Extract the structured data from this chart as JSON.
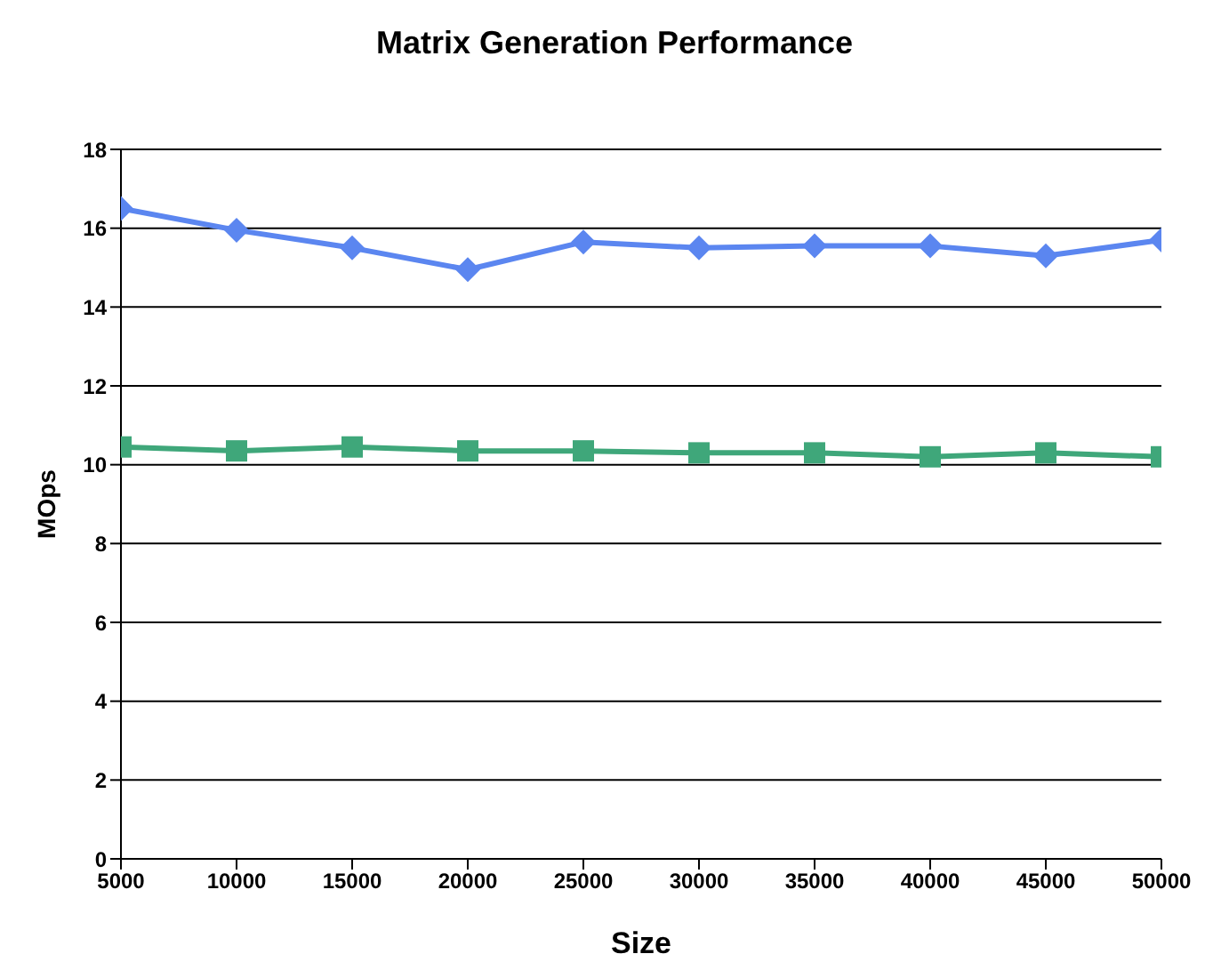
{
  "chart_data": {
    "type": "line",
    "title": "Matrix Generation Performance",
    "xlabel": "Size",
    "ylabel": "MOps",
    "x": [
      5000,
      10000,
      15000,
      20000,
      25000,
      30000,
      35000,
      40000,
      45000,
      50000
    ],
    "series": [
      {
        "color": "#5b86f0",
        "marker": "diamond",
        "values": [
          16.5,
          15.95,
          15.5,
          14.95,
          15.65,
          15.5,
          15.55,
          15.55,
          15.3,
          15.7
        ]
      },
      {
        "color": "#3fa77a",
        "marker": "square",
        "values": [
          10.45,
          10.35,
          10.45,
          10.35,
          10.35,
          10.3,
          10.3,
          10.2,
          10.3,
          10.2
        ]
      }
    ],
    "xlim": [
      5000,
      50000
    ],
    "xticks": [
      5000,
      10000,
      15000,
      20000,
      25000,
      30000,
      35000,
      40000,
      45000,
      50000
    ],
    "ylim": [
      0,
      18
    ],
    "yticks": [
      0,
      2,
      4,
      6,
      8,
      10,
      12,
      14,
      16,
      18
    ],
    "grid": "y",
    "line_style": "solid"
  }
}
